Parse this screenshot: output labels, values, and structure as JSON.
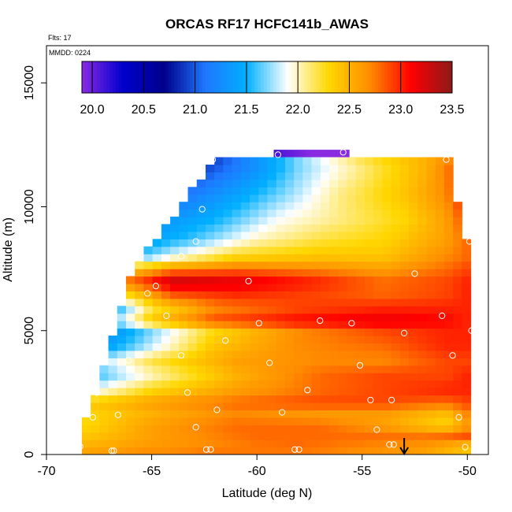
{
  "chart_data": {
    "type": "heatmap",
    "title": "ORCAS RF17 HCFC141b_AWAS",
    "subtitle_flights": "Flts: 17",
    "subtitle_date": "MMDD: 0224",
    "xlabel": "Latitude (deg N)",
    "ylabel": "Altitude (m)",
    "xlim": [
      -70,
      -49
    ],
    "ylim": [
      0,
      16500
    ],
    "x_ticks": [
      -70,
      -65,
      -60,
      -55,
      -50
    ],
    "y_ticks": [
      0,
      5000,
      10000,
      15000
    ],
    "colorbar": {
      "min": 19.9,
      "max": 23.5,
      "ticks": [
        20.0,
        20.5,
        21.0,
        21.5,
        22.0,
        22.5,
        23.0,
        23.5
      ],
      "tick_labels": [
        "20.0",
        "20.5",
        "21.0",
        "21.5",
        "22.0",
        "22.5",
        "23.0",
        "23.5"
      ],
      "colors": [
        "#8a2be2",
        "#0000cd",
        "#00008b",
        "#1f77ff",
        "#00b0ff",
        "#ffffff",
        "#ffd700",
        "#ff8c00",
        "#ff0000",
        "#8b1a1a"
      ]
    },
    "field_envelope": {
      "top_altitude": 12000,
      "left_edge": [
        [
          0,
          -68.5
        ],
        [
          1000,
          -68.3
        ],
        [
          2000,
          -67.8
        ],
        [
          3000,
          -67.5
        ],
        [
          4000,
          -67.1
        ],
        [
          5000,
          -66.8
        ],
        [
          6000,
          -66.4
        ],
        [
          7000,
          -66.2
        ],
        [
          8000,
          -65.5
        ],
        [
          9000,
          -64.6
        ],
        [
          10000,
          -63.6
        ],
        [
          11000,
          -62.8
        ],
        [
          12000,
          -62.0
        ]
      ],
      "right_edge": [
        [
          0,
          -49.9
        ],
        [
          2000,
          -49.9
        ],
        [
          4000,
          -49.9
        ],
        [
          6000,
          -49.9
        ],
        [
          8000,
          -49.9
        ],
        [
          9000,
          -50.1
        ],
        [
          10000,
          -50.4
        ],
        [
          11000,
          -50.6
        ],
        [
          12000,
          -50.8
        ]
      ],
      "top_blue_patch": [
        -59.2,
        -55.6,
        20.0
      ]
    },
    "field_layers": [
      {
        "alt": 0,
        "values": [
          [
            -68.5,
            22.6
          ],
          [
            -66,
            22.7
          ],
          [
            -62,
            22.8
          ],
          [
            -56,
            22.7
          ],
          [
            -52,
            22.6
          ],
          [
            -50,
            22.5
          ]
        ]
      },
      {
        "alt": 300,
        "values": [
          [
            -68.5,
            22.5
          ],
          [
            -66,
            22.6
          ],
          [
            -62,
            22.7
          ],
          [
            -58,
            22.8
          ],
          [
            -55,
            22.7
          ],
          [
            -52,
            22.6
          ],
          [
            -50,
            22.3
          ]
        ]
      },
      {
        "alt": 700,
        "values": [
          [
            -68.2,
            22.4
          ],
          [
            -65,
            22.6
          ],
          [
            -60,
            22.8
          ],
          [
            -56,
            22.8
          ],
          [
            -52,
            22.8
          ],
          [
            -50,
            22.9
          ]
        ]
      },
      {
        "alt": 1200,
        "values": [
          [
            -68,
            22.3
          ],
          [
            -65,
            22.6
          ],
          [
            -61,
            22.8
          ],
          [
            -57,
            22.8
          ],
          [
            -54,
            22.6
          ],
          [
            -51,
            22.3
          ],
          [
            -50,
            22.6
          ]
        ]
      },
      {
        "alt": 1600,
        "values": [
          [
            -68,
            22.3
          ],
          [
            -65,
            22.5
          ],
          [
            -61,
            22.7
          ],
          [
            -57,
            22.6
          ],
          [
            -54,
            22.6
          ],
          [
            -51,
            22.4
          ],
          [
            -50,
            22.7
          ]
        ]
      },
      {
        "alt": 2100,
        "values": [
          [
            -67.8,
            22.4
          ],
          [
            -65,
            22.6
          ],
          [
            -61,
            22.8
          ],
          [
            -57,
            22.9
          ],
          [
            -54,
            22.9
          ],
          [
            -51,
            22.8
          ],
          [
            -50,
            22.9
          ]
        ]
      },
      {
        "alt": 2600,
        "values": [
          [
            -67.6,
            21.9
          ],
          [
            -65,
            22.3
          ],
          [
            -61,
            22.6
          ],
          [
            -57,
            22.8
          ],
          [
            -54,
            22.9
          ],
          [
            -51,
            23.0
          ],
          [
            -50,
            23.0
          ]
        ]
      },
      {
        "alt": 3200,
        "values": [
          [
            -67.5,
            21.6
          ],
          [
            -65,
            22.0
          ],
          [
            -61,
            22.5
          ],
          [
            -57,
            22.8
          ],
          [
            -54,
            22.9
          ],
          [
            -51,
            22.9
          ],
          [
            -50,
            23.0
          ]
        ]
      },
      {
        "alt": 3800,
        "values": [
          [
            -67.2,
            21.8
          ],
          [
            -65,
            22.2
          ],
          [
            -61,
            22.6
          ],
          [
            -57,
            22.7
          ],
          [
            -54,
            22.7
          ],
          [
            -51,
            22.9
          ],
          [
            -50,
            22.9
          ]
        ]
      },
      {
        "alt": 4400,
        "values": [
          [
            -67,
            21.4
          ],
          [
            -65,
            21.8
          ],
          [
            -62,
            22.4
          ],
          [
            -58,
            22.7
          ],
          [
            -54,
            22.8
          ],
          [
            -51,
            23.0
          ],
          [
            -50,
            23.0
          ]
        ]
      },
      {
        "alt": 5000,
        "values": [
          [
            -66.8,
            21.3
          ],
          [
            -65,
            21.7
          ],
          [
            -62,
            22.3
          ],
          [
            -58,
            22.7
          ],
          [
            -54,
            22.9
          ],
          [
            -51,
            23.0
          ],
          [
            -50,
            23.0
          ]
        ]
      },
      {
        "alt": 5400,
        "values": [
          [
            -66.6,
            21.8
          ],
          [
            -65,
            22.4
          ],
          [
            -62,
            22.9
          ],
          [
            -58,
            23.1
          ],
          [
            -54,
            23.2
          ],
          [
            -51,
            23.1
          ],
          [
            -50,
            23.0
          ]
        ]
      },
      {
        "alt": 5900,
        "values": [
          [
            -66.4,
            21.6
          ],
          [
            -65,
            22.2
          ],
          [
            -62,
            22.7
          ],
          [
            -58,
            22.9
          ],
          [
            -54,
            23.0
          ],
          [
            -51,
            23.0
          ],
          [
            -50,
            23.0
          ]
        ]
      },
      {
        "alt": 6500,
        "values": [
          [
            -66.2,
            22.3
          ],
          [
            -64,
            22.9
          ],
          [
            -61,
            23.0
          ],
          [
            -57,
            22.9
          ],
          [
            -54,
            22.8
          ],
          [
            -51,
            22.9
          ],
          [
            -50,
            23.0
          ]
        ]
      },
      {
        "alt": 7000,
        "values": [
          [
            -66,
            22.8
          ],
          [
            -64,
            23.3
          ],
          [
            -61,
            23.2
          ],
          [
            -57,
            23.0
          ],
          [
            -54,
            22.8
          ],
          [
            -51,
            22.9
          ],
          [
            -50,
            23.0
          ]
        ]
      },
      {
        "alt": 7500,
        "values": [
          [
            -65.8,
            22.4
          ],
          [
            -64,
            22.7
          ],
          [
            -61,
            22.8
          ],
          [
            -57,
            22.7
          ],
          [
            -54,
            22.6
          ],
          [
            -51,
            22.8
          ],
          [
            -50,
            22.9
          ]
        ]
      },
      {
        "alt": 8000,
        "values": [
          [
            -65.5,
            21.6
          ],
          [
            -64,
            21.9
          ],
          [
            -61,
            22.3
          ],
          [
            -57,
            22.4
          ],
          [
            -54,
            22.4
          ],
          [
            -51,
            22.7
          ],
          [
            -50,
            22.8
          ]
        ]
      },
      {
        "alt": 8700,
        "values": [
          [
            -65,
            21.4
          ],
          [
            -63,
            21.6
          ],
          [
            -60,
            22.0
          ],
          [
            -57,
            22.2
          ],
          [
            -54,
            22.3
          ],
          [
            -51,
            22.6
          ],
          [
            -50,
            22.8
          ]
        ]
      },
      {
        "alt": 9500,
        "values": [
          [
            -64.5,
            21.3
          ],
          [
            -62,
            21.5
          ],
          [
            -59,
            21.9
          ],
          [
            -56,
            22.1
          ],
          [
            -53,
            22.3
          ],
          [
            -51,
            22.6
          ],
          [
            -50.4,
            22.8
          ]
        ]
      },
      {
        "alt": 10500,
        "values": [
          [
            -63.5,
            21.1
          ],
          [
            -61,
            21.4
          ],
          [
            -58,
            21.8
          ],
          [
            -56,
            22.1
          ],
          [
            -53,
            22.4
          ],
          [
            -51,
            22.7
          ],
          [
            -50.6,
            22.9
          ]
        ]
      },
      {
        "alt": 11500,
        "values": [
          [
            -62.8,
            20.9
          ],
          [
            -60,
            21.3
          ],
          [
            -58,
            21.7
          ],
          [
            -55,
            22.1
          ],
          [
            -52,
            22.5
          ],
          [
            -50.8,
            22.8
          ]
        ]
      },
      {
        "alt": 12000,
        "values": [
          [
            -62,
            20.9
          ],
          [
            -60,
            21.3
          ],
          [
            -58,
            21.7
          ],
          [
            -55,
            22.2
          ],
          [
            -52,
            22.5
          ],
          [
            -50.8,
            22.7
          ]
        ]
      }
    ],
    "samples": [
      [
        -68.6,
        150
      ],
      [
        -68.4,
        320
      ],
      [
        -67.8,
        1500
      ],
      [
        -67.6,
        2500
      ],
      [
        -67.3,
        3800
      ],
      [
        -66.9,
        150
      ],
      [
        -66.8,
        150
      ],
      [
        -66.6,
        1600
      ],
      [
        -66.1,
        3800
      ],
      [
        -65.2,
        6500
      ],
      [
        -64.8,
        6800
      ],
      [
        -64.3,
        5600
      ],
      [
        -63.6,
        8000
      ],
      [
        -63.6,
        4000
      ],
      [
        -63.3,
        2500
      ],
      [
        -62.9,
        8600
      ],
      [
        -62.9,
        1100
      ],
      [
        -62.6,
        9900
      ],
      [
        -62.4,
        200
      ],
      [
        -62.2,
        200
      ],
      [
        -62.1,
        11900
      ],
      [
        -61.9,
        1800
      ],
      [
        -61.5,
        4600
      ],
      [
        -60.4,
        7000
      ],
      [
        -59.9,
        5300
      ],
      [
        -59.4,
        3700
      ],
      [
        -59.0,
        12100
      ],
      [
        -58.8,
        1700
      ],
      [
        -58.2,
        200
      ],
      [
        -58.0,
        200
      ],
      [
        -57.6,
        2600
      ],
      [
        -57.0,
        5400
      ],
      [
        -55.9,
        12200
      ],
      [
        -55.5,
        5300
      ],
      [
        -55.1,
        3600
      ],
      [
        -54.6,
        2200
      ],
      [
        -54.3,
        1000
      ],
      [
        -53.7,
        400
      ],
      [
        -53.5,
        400
      ],
      [
        -53.6,
        2200
      ],
      [
        -53.0,
        4900
      ],
      [
        -52.5,
        7300
      ],
      [
        -51.2,
        5600
      ],
      [
        -51.0,
        11900
      ],
      [
        -50.7,
        4000
      ],
      [
        -50.4,
        1500
      ],
      [
        -50.1,
        300
      ],
      [
        -49.9,
        8600
      ],
      [
        -49.8,
        5000
      ]
    ],
    "arrow_latitude": -53.0
  }
}
